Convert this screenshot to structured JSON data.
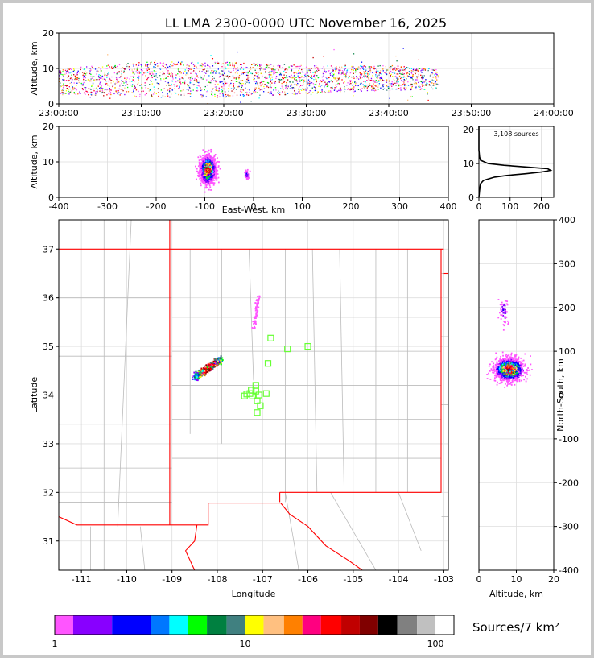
{
  "title": "LL LMA 2300-0000 UTC November 16, 2025",
  "colors": {
    "frame": "#000000",
    "grid": "#dddddd",
    "state_border": "#ff0000",
    "county_border": "#bbbbbb",
    "station": "#66ff33",
    "background": "#c8c8c8"
  },
  "chart_data": [
    {
      "id": "time-height",
      "type": "scatter",
      "xlabel": "",
      "ylabel": "Altitude, km",
      "xlim": [
        "23:00:00",
        "24:00:00"
      ],
      "ylim": [
        0,
        20
      ],
      "xticks": [
        "23:00:00",
        "23:10:00",
        "23:20:00",
        "23:30:00",
        "23:40:00",
        "23:50:00",
        "24:00:00"
      ],
      "yticks": [
        0,
        10,
        20
      ],
      "grid": true,
      "activity": [
        {
          "t": "23:00",
          "alt_min": 3,
          "alt_max": 10
        },
        {
          "t": "23:10",
          "alt_min": 2,
          "alt_max": 12
        },
        {
          "t": "23:20",
          "alt_min": 2,
          "alt_max": 12
        },
        {
          "t": "23:30",
          "alt_min": 3,
          "alt_max": 11
        },
        {
          "t": "23:40",
          "alt_min": 4,
          "alt_max": 11
        },
        {
          "t": "23:46",
          "alt_min": 4,
          "alt_max": 10
        }
      ]
    },
    {
      "id": "ew-altitude",
      "type": "heatmap",
      "xlabel": "East-West, km",
      "ylabel": "Altitude, km",
      "xlim": [
        -400,
        400
      ],
      "ylim": [
        0,
        20
      ],
      "xticks": [
        -400,
        -300,
        -200,
        -100,
        0,
        100,
        200,
        300,
        400
      ],
      "yticks": [
        0,
        10,
        20
      ],
      "grid": true,
      "clusters": [
        {
          "x_center": -95,
          "x_spread": 15,
          "alt_center": 8,
          "alt_spread": 4,
          "peak_sources": 60
        },
        {
          "x_center": -15,
          "x_spread": 4,
          "alt_center": 6.5,
          "alt_spread": 1.5,
          "peak_sources": 3
        }
      ]
    },
    {
      "id": "altitude-histogram",
      "type": "line",
      "annotation": "3,108 sources",
      "xlim": [
        0,
        240
      ],
      "ylim": [
        0,
        21
      ],
      "xticks": [
        0,
        100,
        200
      ],
      "yticks": [
        0,
        10,
        20
      ],
      "grid": true,
      "altitude_km": [
        0,
        2,
        4,
        5,
        6,
        6.5,
        7,
        7.5,
        8,
        8.5,
        9,
        9.5,
        10,
        11,
        12,
        14,
        21
      ],
      "source_count": [
        0,
        2,
        5,
        15,
        50,
        90,
        150,
        200,
        230,
        220,
        150,
        80,
        30,
        5,
        2,
        0,
        0
      ]
    },
    {
      "id": "plan-view",
      "type": "heatmap",
      "xlabel": "Longitude",
      "ylabel": "Latitude",
      "xlim": [
        -111.5,
        -102.9
      ],
      "ylim": [
        30.4,
        37.6
      ],
      "xticks": [
        -111,
        -110,
        -109,
        -108,
        -107,
        -106,
        -105,
        -104,
        -103
      ],
      "yticks": [
        31,
        32,
        33,
        34,
        35,
        36,
        37
      ],
      "grid": true,
      "clusters": [
        {
          "lon_start": -108.5,
          "lat_start": 34.38,
          "lon_end": -107.95,
          "lat_end": 34.75,
          "peak_sources": 60
        },
        {
          "lon_start": -107.2,
          "lat_start": 35.45,
          "lon_end": -107.1,
          "lat_end": 36.1,
          "peak_sources": 3
        }
      ],
      "stations": [
        {
          "lon": -107.15,
          "lat": 34.2
        },
        {
          "lon": -107.25,
          "lat": 34.1
        },
        {
          "lon": -107.35,
          "lat": 34.02
        },
        {
          "lon": -107.15,
          "lat": 34.08
        },
        {
          "lon": -107.22,
          "lat": 33.98
        },
        {
          "lon": -107.08,
          "lat": 34.0
        },
        {
          "lon": -106.92,
          "lat": 34.03
        },
        {
          "lon": -107.12,
          "lat": 33.88
        },
        {
          "lon": -107.05,
          "lat": 33.78
        },
        {
          "lon": -107.12,
          "lat": 33.64
        },
        {
          "lon": -107.28,
          "lat": 34.03
        },
        {
          "lon": -107.4,
          "lat": 33.98
        },
        {
          "lon": -106.88,
          "lat": 34.65
        },
        {
          "lon": -106.45,
          "lat": 34.95
        },
        {
          "lon": -106.0,
          "lat": 35.0
        },
        {
          "lon": -106.82,
          "lat": 35.17
        }
      ]
    },
    {
      "id": "altitude-ns",
      "type": "heatmap",
      "xlabel": "Altitude, km",
      "ylabel": "North-South, km",
      "xlim": [
        0,
        20
      ],
      "ylim": [
        -400,
        400
      ],
      "xticks": [
        0,
        10,
        20
      ],
      "yticks": [
        -400,
        -300,
        -200,
        -100,
        0,
        100,
        200,
        300,
        400
      ],
      "grid": true,
      "clusters": [
        {
          "alt_center": 8,
          "alt_spread": 4,
          "ns_center": 60,
          "ns_spread": 25,
          "peak_sources": 60
        },
        {
          "alt_center": 6.5,
          "alt_spread": 1.5,
          "ns_center": 195,
          "ns_spread": 35,
          "peak_sources": 3
        }
      ]
    }
  ],
  "colorbar": {
    "label": "Sources/7 km²",
    "tick_labels": [
      "1",
      "10",
      "100"
    ],
    "tick_values": [
      1,
      10,
      100
    ],
    "range": [
      1,
      125
    ],
    "bins": [
      {
        "from": 1,
        "to": 1.25,
        "color": "#ff55ff"
      },
      {
        "from": 1.25,
        "to": 2,
        "color": "#8800ff"
      },
      {
        "from": 2,
        "to": 3.2,
        "color": "#0000ff"
      },
      {
        "from": 3.2,
        "to": 4,
        "color": "#0077ff"
      },
      {
        "from": 4,
        "to": 5,
        "color": "#00ffff"
      },
      {
        "from": 5,
        "to": 6.3,
        "color": "#00ff00"
      },
      {
        "from": 6.3,
        "to": 8,
        "color": "#008040"
      },
      {
        "from": 8,
        "to": 10,
        "color": "#408080"
      },
      {
        "from": 10,
        "to": 12.5,
        "color": "#ffff00"
      },
      {
        "from": 12.5,
        "to": 16,
        "color": "#ffc080"
      },
      {
        "from": 16,
        "to": 20,
        "color": "#ff8000"
      },
      {
        "from": 20,
        "to": 25,
        "color": "#ff0080"
      },
      {
        "from": 25,
        "to": 32,
        "color": "#ff0000"
      },
      {
        "from": 32,
        "to": 40,
        "color": "#c00000"
      },
      {
        "from": 40,
        "to": 50,
        "color": "#800000"
      },
      {
        "from": 50,
        "to": 63,
        "color": "#000000"
      },
      {
        "from": 63,
        "to": 80,
        "color": "#808080"
      },
      {
        "from": 80,
        "to": 100,
        "color": "#c0c0c0"
      },
      {
        "from": 100,
        "to": 125,
        "color": "#ffffff"
      }
    ]
  }
}
